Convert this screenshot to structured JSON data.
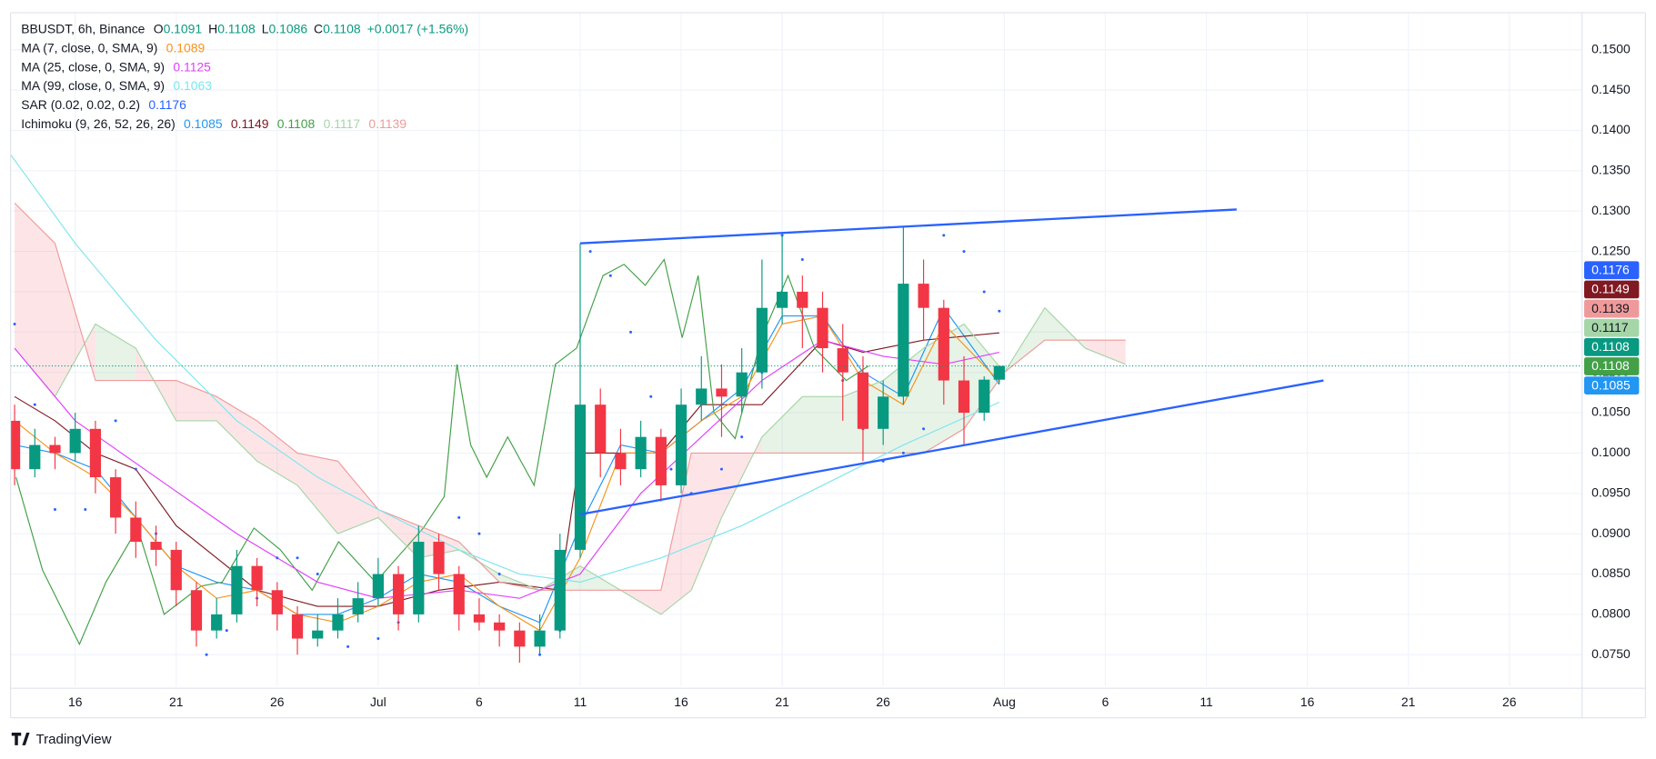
{
  "chart_data": {
    "type": "candlestick",
    "header": {
      "symbol": "BBUSDT, 6h, Binance",
      "labels": [
        "O",
        "H",
        "L",
        "C"
      ],
      "change": "+0.0017 (+1.56%)"
    },
    "up_color": "#089981",
    "down_color": "#f23645",
    "candles": {
      "x": [
        13,
        14,
        15,
        16,
        17,
        18,
        19,
        20,
        21,
        22,
        23,
        24,
        25,
        26,
        27,
        28,
        29,
        30,
        31,
        32,
        33,
        34,
        35,
        36,
        37,
        38,
        39,
        40,
        41,
        42,
        43,
        44,
        45,
        46,
        47,
        48,
        49,
        50,
        51,
        52,
        53,
        54,
        55,
        56,
        57,
        58,
        59,
        60,
        61,
        61.75
      ],
      "open": [
        0.104,
        0.098,
        0.101,
        0.1,
        0.103,
        0.097,
        0.092,
        0.089,
        0.088,
        0.083,
        0.078,
        0.08,
        0.086,
        0.083,
        0.08,
        0.077,
        0.078,
        0.08,
        0.082,
        0.085,
        0.08,
        0.089,
        0.085,
        0.08,
        0.079,
        0.078,
        0.076,
        0.078,
        0.088,
        0.106,
        0.1,
        0.098,
        0.102,
        0.096,
        0.106,
        0.108,
        0.107,
        0.11,
        0.118,
        0.12,
        0.118,
        0.113,
        0.11,
        0.103,
        0.107,
        0.121,
        0.118,
        0.109,
        0.105,
        0.1091
      ],
      "high": [
        0.106,
        0.103,
        0.102,
        0.105,
        0.104,
        0.098,
        0.094,
        0.091,
        0.089,
        0.084,
        0.082,
        0.088,
        0.087,
        0.084,
        0.081,
        0.08,
        0.082,
        0.084,
        0.087,
        0.086,
        0.091,
        0.09,
        0.086,
        0.082,
        0.08,
        0.079,
        0.08,
        0.09,
        0.126,
        0.108,
        0.103,
        0.104,
        0.103,
        0.108,
        0.112,
        0.111,
        0.113,
        0.124,
        0.127,
        0.122,
        0.12,
        0.116,
        0.112,
        0.109,
        0.128,
        0.124,
        0.119,
        0.112,
        0.1095,
        0.1108
      ],
      "low": [
        0.096,
        0.097,
        0.098,
        0.099,
        0.095,
        0.09,
        0.087,
        0.086,
        0.081,
        0.076,
        0.077,
        0.079,
        0.081,
        0.078,
        0.075,
        0.076,
        0.077,
        0.079,
        0.081,
        0.078,
        0.079,
        0.083,
        0.078,
        0.078,
        0.076,
        0.074,
        0.075,
        0.077,
        0.087,
        0.097,
        0.096,
        0.097,
        0.094,
        0.095,
        0.104,
        0.102,
        0.105,
        0.108,
        0.116,
        0.113,
        0.11,
        0.104,
        0.099,
        0.101,
        0.106,
        0.114,
        0.106,
        0.101,
        0.104,
        0.1086
      ],
      "close": [
        0.098,
        0.101,
        0.1,
        0.103,
        0.097,
        0.092,
        0.089,
        0.088,
        0.083,
        0.078,
        0.08,
        0.086,
        0.083,
        0.08,
        0.077,
        0.078,
        0.08,
        0.082,
        0.085,
        0.08,
        0.089,
        0.085,
        0.08,
        0.079,
        0.078,
        0.076,
        0.078,
        0.088,
        0.106,
        0.1,
        0.098,
        0.102,
        0.096,
        0.106,
        0.108,
        0.107,
        0.11,
        0.118,
        0.12,
        0.118,
        0.113,
        0.11,
        0.103,
        0.107,
        0.121,
        0.118,
        0.109,
        0.105,
        0.1091,
        0.1108
      ]
    },
    "indicators": [
      {
        "label": "MA (7, close, 0, SMA, 9)",
        "value": 0.1089,
        "color": "#f7931a",
        "style": "line",
        "x": [
          13,
          15,
          17,
          19,
          21,
          23,
          25,
          27,
          29,
          31,
          33,
          35,
          37,
          39,
          41,
          43,
          45,
          47,
          49,
          51,
          53,
          55,
          57,
          59,
          61.75
        ],
        "values": [
          0.104,
          0.1,
          0.097,
          0.092,
          0.086,
          0.082,
          0.083,
          0.08,
          0.079,
          0.081,
          0.084,
          0.085,
          0.081,
          0.078,
          0.087,
          0.1,
          0.1,
          0.104,
          0.107,
          0.116,
          0.117,
          0.109,
          0.106,
          0.116,
          0.1089
        ]
      },
      {
        "label": "MA (25, close, 0, SMA, 9)",
        "value": 0.1125,
        "color": "#e040fb",
        "style": "line",
        "x": [
          13,
          16,
          20,
          24,
          28,
          31,
          35,
          38,
          41,
          44,
          47,
          50,
          53,
          56,
          59,
          61.75
        ],
        "values": [
          0.113,
          0.104,
          0.097,
          0.09,
          0.084,
          0.082,
          0.083,
          0.082,
          0.085,
          0.095,
          0.102,
          0.109,
          0.114,
          0.112,
          0.111,
          0.1125
        ]
      },
      {
        "label": "MA (99, close, 0, SMA, 9)",
        "value": 0.1063,
        "color": "#7fe5ef",
        "style": "line",
        "x": [
          12.8,
          16,
          20,
          24,
          28,
          31,
          35,
          38,
          41,
          45,
          49,
          53,
          57,
          61.75
        ],
        "values": [
          0.137,
          0.126,
          0.114,
          0.104,
          0.097,
          0.093,
          0.088,
          0.085,
          0.084,
          0.087,
          0.091,
          0.096,
          0.101,
          0.1063
        ]
      },
      {
        "label": "SAR (0.02, 0.02, 0.2)",
        "value": 0.1176,
        "color": "#2962ff",
        "style": "dots",
        "x": [
          13,
          14,
          15,
          16.5,
          18,
          19,
          20,
          21,
          22.5,
          23.5,
          25,
          26,
          27,
          28,
          29.5,
          31,
          32,
          33,
          34,
          35,
          36,
          37,
          38,
          39,
          40,
          41.5,
          42.5,
          43.5,
          44.5,
          45.5,
          46.5,
          48,
          49,
          50,
          51,
          52,
          53,
          54,
          55,
          56,
          57,
          58,
          59,
          60,
          61,
          61.75
        ],
        "values": [
          0.116,
          0.106,
          0.093,
          0.093,
          0.104,
          0.098,
          0.09,
          0.085,
          0.075,
          0.078,
          0.082,
          0.087,
          0.087,
          0.085,
          0.076,
          0.077,
          0.079,
          0.082,
          0.087,
          0.092,
          0.09,
          0.085,
          0.077,
          0.075,
          0.078,
          0.125,
          0.122,
          0.115,
          0.107,
          0.098,
          0.095,
          0.098,
          0.102,
          0.11,
          0.127,
          0.124,
          0.117,
          0.109,
          0.103,
          0.099,
          0.1,
          0.103,
          0.127,
          0.125,
          0.12,
          0.1176
        ]
      },
      {
        "label": "Ichimoku (9, 26, 52, 26, 26)",
        "components": [
          {
            "value": 0.1085,
            "color": "#2196f3",
            "x": [
              13,
              15,
              17,
              19,
              21,
              23,
              25,
              27,
              29,
              31,
              33,
              35,
              37,
              39,
              41,
              43,
              45,
              47,
              49,
              51,
              53,
              55,
              57,
              59,
              61.75
            ],
            "values": [
              0.101,
              0.1,
              0.098,
              0.092,
              0.086,
              0.084,
              0.083,
              0.08,
              0.08,
              0.082,
              0.085,
              0.084,
              0.081,
              0.079,
              0.091,
              0.101,
              0.1,
              0.104,
              0.108,
              0.117,
              0.117,
              0.11,
              0.107,
              0.118,
              0.1085
            ]
          },
          {
            "value": 0.1149,
            "color": "#801922",
            "x": [
              13,
              15,
              17,
              19,
              21,
              23,
              25,
              28,
              31,
              34,
              37,
              40,
              41,
              45,
              47,
              50,
              53,
              55,
              58,
              61.75
            ],
            "values": [
              0.107,
              0.104,
              0.1,
              0.098,
              0.091,
              0.087,
              0.083,
              0.081,
              0.081,
              0.083,
              0.084,
              0.083,
              0.1,
              0.1,
              0.106,
              0.106,
              0.114,
              0.1125,
              0.114,
              0.1149
            ]
          },
          {
            "value": 0.1108,
            "color": "#43a047",
            "x": [
              13.07,
              14.38,
              16.21,
              17.52,
              19.09,
              20.4,
              22.23,
              23.28,
              24.85,
              26.16,
              27.73,
              29.04,
              30.87,
              33.23,
              34.27,
              34.9,
              35.58,
              36.37,
              37.41,
              38.72,
              39.77,
              40.82,
              42.13,
              43.17,
              44.22,
              45.16,
              46.05,
              46.84,
              47.62,
              48.67,
              49.98,
              51.29,
              52.6,
              54.17,
              55.27
            ],
            "values": [
              0.097,
              0.0855,
              0.0763,
              0.084,
              0.0907,
              0.08,
              0.0835,
              0.084,
              0.0907,
              0.088,
              0.083,
              0.089,
              0.084,
              0.0907,
              0.0946,
              0.111,
              0.101,
              0.097,
              0.102,
              0.096,
              0.111,
              0.113,
              0.122,
              0.1234,
              0.1208,
              0.124,
              0.1143,
              0.122,
              0.105,
              0.1018,
              0.1143,
              0.122,
              0.113,
              0.109,
              0.1108
            ]
          },
          {
            "value": 0.1117,
            "color": "#a5d6a7",
            "x": [
              13,
              15,
              17,
              19,
              21,
              23,
              25,
              27,
              29,
              31,
              33,
              35,
              37,
              39,
              41,
              43,
              45,
              46.5,
              48,
              50,
              52,
              54,
              56,
              58,
              60,
              62,
              64,
              66,
              68
            ],
            "values": [
              0.113,
              0.107,
              0.116,
              0.113,
              0.104,
              0.104,
              0.099,
              0.096,
              0.09,
              0.092,
              0.087,
              0.088,
              0.085,
              0.083,
              0.086,
              0.083,
              0.08,
              0.083,
              0.092,
              0.102,
              0.107,
              0.107,
              0.109,
              0.113,
              0.116,
              0.11,
              0.118,
              0.113,
              0.111
            ]
          },
          {
            "value": 0.1139,
            "color": "#ef9a9a",
            "x": [
              13,
              15,
              17,
              19,
              21,
              23,
              25,
              27,
              29,
              31,
              33,
              35,
              37,
              39,
              41,
              43,
              45,
              46.5,
              48,
              50,
              52,
              54,
              56,
              58,
              60,
              62,
              64,
              66,
              68
            ],
            "values": [
              0.131,
              0.126,
              0.109,
              0.109,
              0.109,
              0.107,
              0.104,
              0.1,
              0.099,
              0.093,
              0.091,
              0.089,
              0.084,
              0.083,
              0.083,
              0.083,
              0.083,
              0.1,
              0.1,
              0.1,
              0.1,
              0.1,
              0.1,
              0.1,
              0.103,
              0.11,
              0.114,
              0.114,
              0.114
            ]
          }
        ]
      }
    ],
    "cloud_colors": [
      "rgba(67,160,71,0.13)",
      "rgba(242,54,69,0.13)"
    ],
    "trendlines": [
      {
        "color": "#2962ff",
        "x": [
          41,
          73.5
        ],
        "values": [
          0.126,
          0.1302
        ]
      },
      {
        "color": "#2962ff",
        "x": [
          41,
          77.8
        ],
        "values": [
          0.0924,
          0.109
        ]
      }
    ],
    "xlim": [
      12.8,
      90.6
    ],
    "xticks": [
      {
        "value": 16,
        "label": "16"
      },
      {
        "value": 21,
        "label": "21"
      },
      {
        "value": 26,
        "label": "26"
      },
      {
        "value": 31,
        "label": "Jul"
      },
      {
        "value": 36,
        "label": "6"
      },
      {
        "value": 41,
        "label": "11"
      },
      {
        "value": 46,
        "label": "16"
      },
      {
        "value": 51,
        "label": "21"
      },
      {
        "value": 56,
        "label": "26"
      },
      {
        "value": 62,
        "label": "Aug"
      },
      {
        "value": 67,
        "label": "6"
      },
      {
        "value": 72,
        "label": "11"
      },
      {
        "value": 77,
        "label": "16"
      },
      {
        "value": 82,
        "label": "21"
      },
      {
        "value": 87,
        "label": "26"
      }
    ],
    "ylim": [
      0.0711,
      0.1546
    ],
    "yticks": [
      {
        "value": 0.075,
        "label": "0.0750"
      },
      {
        "value": 0.08,
        "label": "0.0800"
      },
      {
        "value": 0.085,
        "label": "0.0850"
      },
      {
        "value": 0.09,
        "label": "0.0900"
      },
      {
        "value": 0.095,
        "label": "0.0950"
      },
      {
        "value": 0.1,
        "label": "0.1000"
      },
      {
        "value": 0.105,
        "label": "0.1050"
      },
      {
        "value": 0.11,
        "label": "0.1100"
      },
      {
        "value": 0.115,
        "label": "0.1150"
      },
      {
        "value": 0.12,
        "label": "0.1200"
      },
      {
        "value": 0.125,
        "label": "0.1250"
      },
      {
        "value": 0.13,
        "label": "0.1300"
      },
      {
        "value": 0.135,
        "label": "0.1350"
      },
      {
        "value": 0.14,
        "label": "0.1400"
      },
      {
        "value": 0.145,
        "label": "0.1450"
      },
      {
        "value": 0.15,
        "label": "0.1500"
      }
    ],
    "grid": true
  },
  "footer": {
    "brand": "TradingView"
  }
}
